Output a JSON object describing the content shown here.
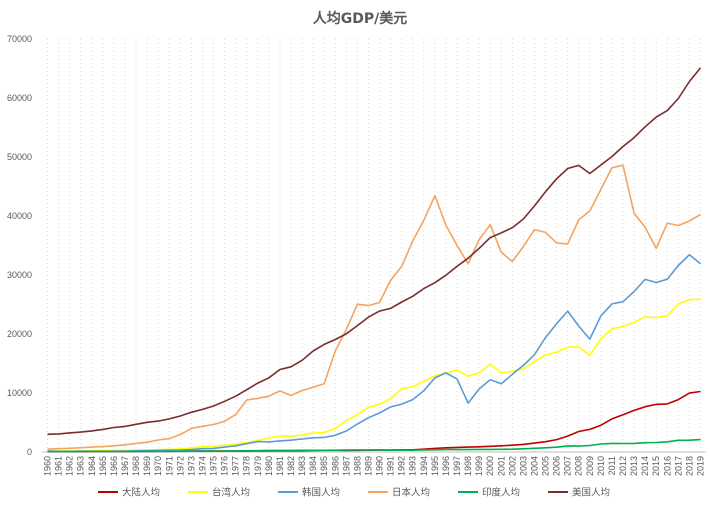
{
  "chart_data": {
    "type": "line",
    "title": "人均GDP/美元",
    "xlabel": "",
    "ylabel": "",
    "ylim": [
      0,
      70000
    ],
    "yticks": [
      0,
      10000,
      20000,
      30000,
      40000,
      50000,
      60000,
      70000
    ],
    "grid": "vertical-dotted",
    "legend_position": "bottom",
    "x": [
      1960,
      1961,
      1962,
      1963,
      1964,
      1965,
      1966,
      1967,
      1968,
      1969,
      1970,
      1971,
      1972,
      1973,
      1974,
      1975,
      1976,
      1977,
      1978,
      1979,
      1980,
      1981,
      1982,
      1983,
      1984,
      1985,
      1986,
      1987,
      1988,
      1989,
      1990,
      1991,
      1992,
      1993,
      1994,
      1995,
      1996,
      1997,
      1998,
      1999,
      2000,
      2001,
      2002,
      2003,
      2004,
      2005,
      2006,
      2007,
      2008,
      2009,
      2010,
      2011,
      2012,
      2013,
      2014,
      2015,
      2016,
      2017,
      2018,
      2019
    ],
    "series": [
      {
        "name": "大陆人均",
        "color": "#c00000",
        "values": [
          90,
          76,
          70,
          74,
          85,
          98,
          104,
          96,
          91,
          100,
          113,
          118,
          131,
          157,
          160,
          178,
          165,
          185,
          156,
          183,
          195,
          197,
          203,
          225,
          250,
          294,
          282,
          252,
          284,
          308,
          318,
          333,
          366,
          377,
          473,
          610,
          709,
          782,
          829,
          873,
          959,
          1053,
          1149,
          1289,
          1509,
          1753,
          2099,
          2694,
          3468,
          3832,
          4550,
          5618,
          6317,
          7051,
          7679,
          8067,
          8148,
          8879,
          9977,
          10261
        ]
      },
      {
        "name": "台湾人均",
        "color": "#ffff00",
        "values": [
          154,
          151,
          162,
          176,
          205,
          217,
          237,
          266,
          302,
          345,
          393,
          443,
          522,
          695,
          920,
          976,
          1159,
          1314,
          1600,
          1930,
          2389,
          2721,
          2676,
          2880,
          3203,
          3297,
          3993,
          5325,
          6333,
          7577,
          8124,
          9007,
          10715,
          11079,
          11983,
          12918,
          13391,
          13904,
          12840,
          13414,
          14908,
          13397,
          13686,
          14066,
          15318,
          16427,
          16934,
          17757,
          17814,
          16360,
          19181,
          20866,
          21295,
          21973,
          22874,
          22780,
          23091,
          25080,
          25838,
          25873
        ]
      },
      {
        "name": "韩国人均",
        "color": "#5b9bd5",
        "values": [
          158,
          94,
          106,
          146,
          124,
          109,
          133,
          161,
          198,
          243,
          279,
          300,
          323,
          406,
          563,
          617,
          834,
          1055,
          1405,
          1783,
          1711,
          1883,
          1992,
          2198,
          2412,
          2481,
          2835,
          3555,
          4749,
          5817,
          6610,
          7637,
          8127,
          8885,
          10385,
          12565,
          13403,
          12398,
          8282,
          10673,
          12257,
          11562,
          13165,
          14673,
          16496,
          19403,
          21743,
          23883,
          21350,
          19144,
          23087,
          25096,
          25467,
          27182,
          29250,
          28732,
          29289,
          31617,
          33447,
          31902
        ]
      },
      {
        "name": "日本人均",
        "color": "#f4a460",
        "values": [
          479,
          564,
          634,
          718,
          836,
          920,
          1058,
          1228,
          1450,
          1669,
          2037,
          2272,
          2967,
          3997,
          4354,
          4659,
          5197,
          6335,
          8821,
          9105,
          9463,
          10361,
          9578,
          10425,
          10984,
          11585,
          17113,
          20745,
          25051,
          24813,
          25359,
          29079,
          31465,
          35766,
          39269,
          43440,
          38437,
          35022,
          31903,
          35999,
          38532,
          33846,
          32289,
          34808,
          37689,
          37218,
          35434,
          35275,
          39339,
          40855,
          44508,
          48168,
          48603,
          40454,
          38109,
          34524,
          38794,
          38387,
          39159,
          40247
        ]
      },
      {
        "name": "印度人均",
        "color": "#00b050",
        "values": [
          82,
          85,
          89,
          101,
          115,
          119,
          90,
          96,
          99,
          107,
          112,
          119,
          122,
          143,
          163,
          158,
          161,
          186,
          206,
          224,
          267,
          271,
          274,
          291,
          276,
          296,
          310,
          340,
          354,
          346,
          368,
          303,
          317,
          301,
          346,
          374,
          400,
          415,
          413,
          441,
          443,
          452,
          471,
          547,
          628,
          714,
          807,
          1028,
          999,
          1102,
          1358,
          1458,
          1444,
          1450,
          1574,
          1606,
          1733,
          1981,
          1997,
          2100
        ]
      },
      {
        "name": "美国人均",
        "color": "#7b2c2c",
        "values": [
          3007,
          3067,
          3244,
          3375,
          3574,
          3828,
          4146,
          4336,
          4696,
          5032,
          5234,
          5609,
          6094,
          6726,
          7226,
          7801,
          8592,
          9453,
          10565,
          11674,
          12575,
          13976,
          14434,
          15544,
          17121,
          18237,
          19071,
          20039,
          21417,
          22857,
          23889,
          24342,
          25419,
          26387,
          27695,
          28691,
          29968,
          31459,
          32854,
          34515,
          36335,
          37133,
          38023,
          39496,
          41713,
          44115,
          46299,
          48050,
          48570,
          47195,
          48651,
          50066,
          51784,
          53291,
          55124,
          56763,
          57867,
          59915,
          62805,
          65095
        ]
      }
    ]
  }
}
